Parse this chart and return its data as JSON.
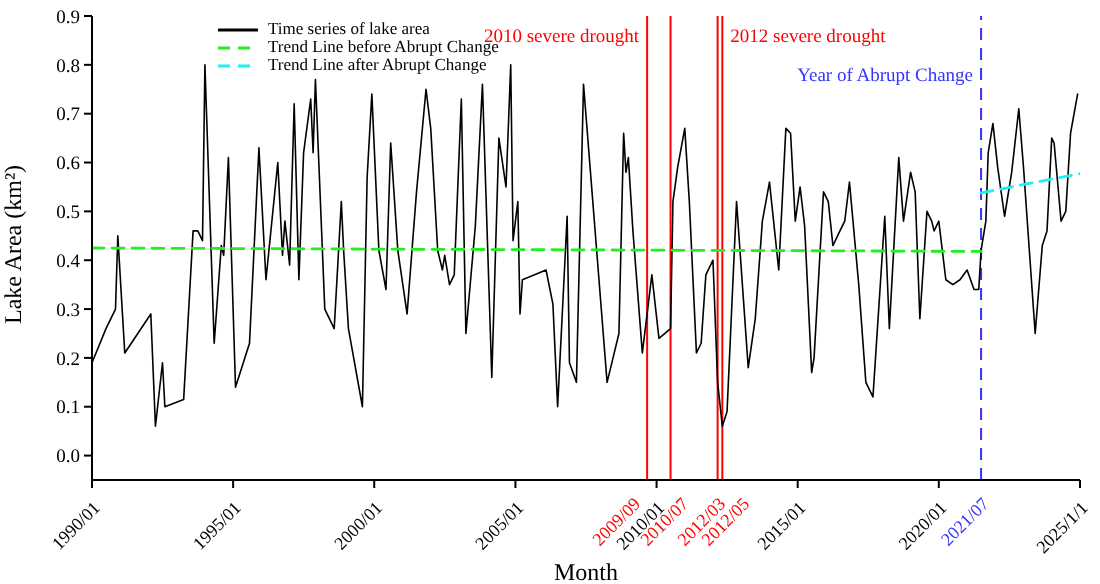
{
  "chart_data": {
    "type": "line",
    "xlabel": "Month",
    "ylabel": "Lake Area (km²)",
    "xlim": [
      "1990-01",
      "2025-01-01"
    ],
    "xticks": [
      {
        "value": "1990-01",
        "label": "1990/01"
      },
      {
        "value": "1995-01",
        "label": "1995/01"
      },
      {
        "value": "2000-01",
        "label": "2000/01"
      },
      {
        "value": "2005-01",
        "label": "2005/01"
      },
      {
        "value": "2010-01",
        "label": "2010/01"
      },
      {
        "value": "2015-01",
        "label": "2015/01"
      },
      {
        "value": "2020-01",
        "label": "2020/01"
      },
      {
        "value": "2025-01-01",
        "label": "2025/1/1"
      }
    ],
    "ylim": [
      -0.05,
      0.9
    ],
    "yticks": [
      {
        "value": 0,
        "label": "0.0"
      },
      0.1,
      0.2,
      0.3,
      0.4,
      0.5,
      0.6,
      0.7,
      0.8,
      0.9
    ],
    "grid": false,
    "legend": "top left",
    "marker": "none",
    "series": [
      {
        "name": "Time series of lake area",
        "color": "#000000",
        "line_style": "solid",
        "x": [
          "1990-01",
          "1990-07",
          "1990-11",
          "1990-12",
          "1991-03",
          "1992-02",
          "1992-04",
          "1992-07",
          "1992-08",
          "1993-04",
          "1993-08",
          "1993-10",
          "1993-12",
          "1994-01",
          "1994-05",
          "1994-08",
          "1994-09",
          "1994-11",
          "1995-02",
          "1995-08",
          "1995-12",
          "1996-03",
          "1996-08",
          "1996-10",
          "1996-11",
          "1997-01",
          "1997-03",
          "1997-05",
          "1997-07",
          "1997-10",
          "1997-11",
          "1997-12",
          "1998-04",
          "1998-08",
          "1998-11",
          "1998-12",
          "1999-02",
          "1999-08",
          "1999-10",
          "1999-12",
          "2000-03",
          "2000-06",
          "2000-08",
          "2000-11",
          "2001-03",
          "2001-07",
          "2001-11",
          "2002-01",
          "2002-04",
          "2002-06",
          "2002-07",
          "2002-09",
          "2002-11",
          "2003-02",
          "2003-04",
          "2003-08",
          "2003-11",
          "2004-03",
          "2004-06",
          "2004-09",
          "2004-11",
          "2004-12",
          "2005-02",
          "2005-03",
          "2005-04",
          "2006-02",
          "2006-05",
          "2006-07",
          "2006-11",
          "2006-12",
          "2007-03",
          "2007-06",
          "2008-04",
          "2008-09",
          "2008-11",
          "2008-12",
          "2009-01",
          "2009-03",
          "2009-07",
          "2009-11",
          "2010-02",
          "2010-07",
          "2010-08",
          "2010-10",
          "2011-01",
          "2011-03",
          "2011-06",
          "2011-08",
          "2011-10",
          "2012-01",
          "2012-03",
          "2012-05",
          "2012-07",
          "2012-11",
          "2013-04",
          "2013-07",
          "2013-10",
          "2014-01",
          "2014-05",
          "2014-08",
          "2014-10",
          "2014-12",
          "2015-02",
          "2015-04",
          "2015-07",
          "2015-08",
          "2015-12",
          "2016-02",
          "2016-04",
          "2016-07",
          "2016-09",
          "2016-11",
          "2017-03",
          "2017-06",
          "2017-09",
          "2018-02",
          "2018-04",
          "2018-08",
          "2018-10",
          "2019-01",
          "2019-03",
          "2019-05",
          "2019-08",
          "2019-10",
          "2019-11",
          "2020-01",
          "2020-04",
          "2020-07",
          "2020-10",
          "2021-01",
          "2021-04",
          "2021-06",
          "2021-07",
          "2021-09",
          "2021-10",
          "2021-12",
          "2022-02",
          "2022-05",
          "2022-08",
          "2022-11",
          "2023-01",
          "2023-06",
          "2023-09",
          "2023-11",
          "2024-01",
          "2024-02",
          "2024-05",
          "2024-07",
          "2024-09",
          "2024-12"
        ],
        "values": [
          0.19,
          0.26,
          0.3,
          0.45,
          0.21,
          0.29,
          0.06,
          0.19,
          0.1,
          0.115,
          0.46,
          0.46,
          0.44,
          0.8,
          0.23,
          0.43,
          0.41,
          0.61,
          0.14,
          0.23,
          0.63,
          0.36,
          0.6,
          0.41,
          0.48,
          0.39,
          0.72,
          0.36,
          0.62,
          0.73,
          0.62,
          0.77,
          0.3,
          0.26,
          0.52,
          0.42,
          0.26,
          0.1,
          0.57,
          0.74,
          0.42,
          0.34,
          0.64,
          0.42,
          0.29,
          0.54,
          0.75,
          0.67,
          0.42,
          0.38,
          0.41,
          0.35,
          0.37,
          0.73,
          0.25,
          0.47,
          0.76,
          0.16,
          0.65,
          0.55,
          0.8,
          0.44,
          0.52,
          0.29,
          0.36,
          0.38,
          0.31,
          0.1,
          0.49,
          0.19,
          0.15,
          0.76,
          0.15,
          0.25,
          0.66,
          0.58,
          0.61,
          0.46,
          0.21,
          0.37,
          0.24,
          0.26,
          0.52,
          0.59,
          0.67,
          0.52,
          0.21,
          0.23,
          0.37,
          0.4,
          0.15,
          0.06,
          0.09,
          0.52,
          0.18,
          0.28,
          0.48,
          0.56,
          0.38,
          0.67,
          0.66,
          0.48,
          0.55,
          0.47,
          0.17,
          0.2,
          0.54,
          0.52,
          0.43,
          0.46,
          0.48,
          0.56,
          0.35,
          0.15,
          0.12,
          0.49,
          0.26,
          0.61,
          0.48,
          0.58,
          0.54,
          0.28,
          0.5,
          0.48,
          0.46,
          0.48,
          0.36,
          0.35,
          0.36,
          0.38,
          0.34,
          0.34,
          0.42,
          0.48,
          0.62,
          0.68,
          0.59,
          0.49,
          0.58,
          0.71,
          0.59,
          0.25,
          0.43,
          0.46,
          0.65,
          0.64,
          0.48,
          0.5,
          0.66,
          0.74
        ]
      },
      {
        "name": "Trend Line before Abrupt Change",
        "color": "#22ee22",
        "line_style": "dashed",
        "x": [
          "1990-01",
          "2021-07"
        ],
        "values": [
          0.425,
          0.418
        ]
      },
      {
        "name": "Trend Line after Abrupt Change",
        "color": "#22eeee",
        "line_style": "dashed",
        "x": [
          "2021-07",
          "2025-01-01"
        ],
        "values": [
          0.538,
          0.577
        ]
      }
    ],
    "ref_lines": [
      {
        "axis": "x",
        "value": "2009-09",
        "label": "2009/09",
        "color": "#ff0000",
        "line_style": "solid"
      },
      {
        "axis": "x",
        "value": "2010-07",
        "label": "2010/07",
        "color": "#ff0000",
        "line_style": "solid"
      },
      {
        "axis": "x",
        "value": "2012-03",
        "label": "2012/03",
        "color": "#ff0000",
        "line_style": "solid"
      },
      {
        "axis": "x",
        "value": "2012-05",
        "label": "2012/05",
        "color": "#ff0000",
        "line_style": "solid"
      },
      {
        "axis": "x",
        "value": "2021-07",
        "label": "2021/07",
        "color": "#3333ff",
        "line_style": "dashed"
      }
    ],
    "annotations": [
      {
        "text": "2010 severe drought",
        "x": "2009-09",
        "y": 0.855
      },
      {
        "text": "2012 severe drought",
        "x": "2012-05",
        "y": 0.855
      },
      {
        "text": "Year of Abrupt Change",
        "x": "2021-07",
        "y": 0.775
      }
    ]
  }
}
